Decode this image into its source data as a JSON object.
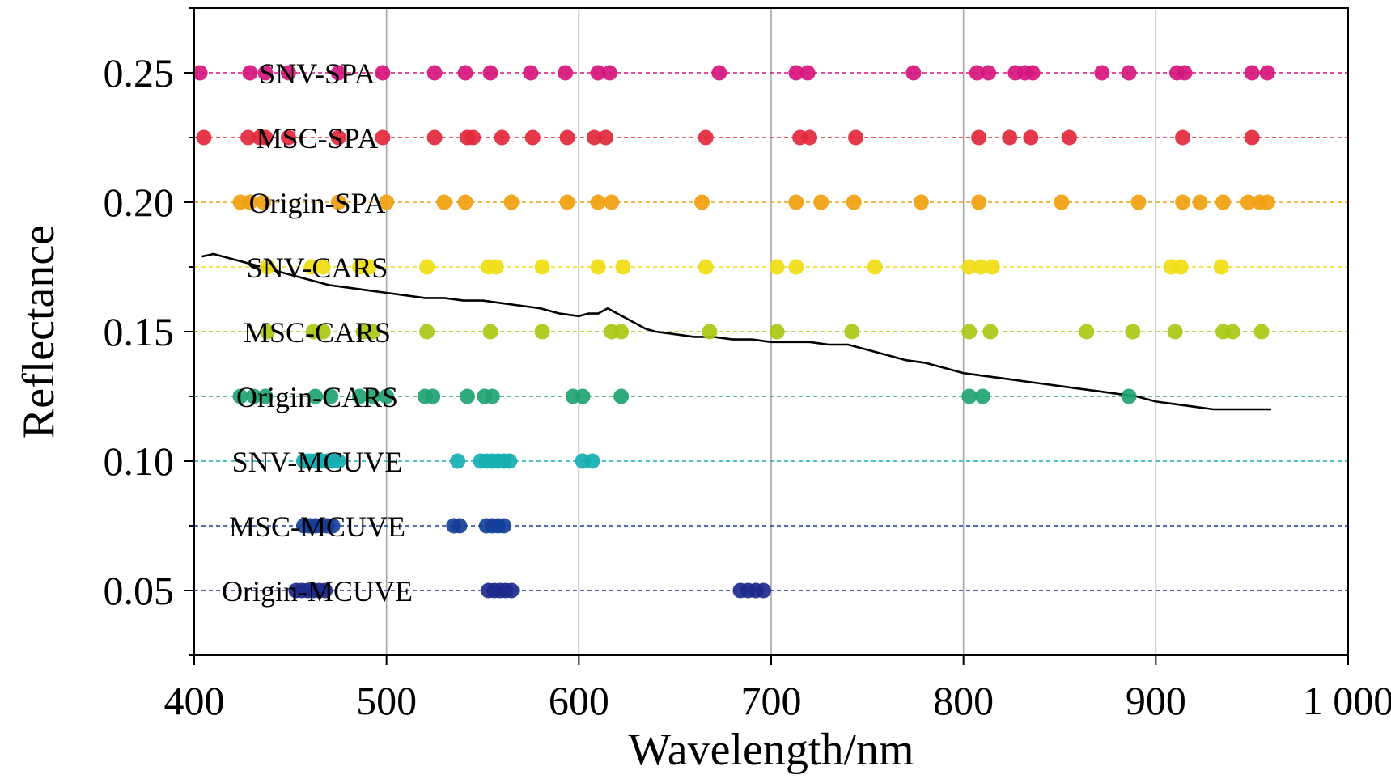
{
  "chart_data": {
    "type": "scatter",
    "title": "",
    "xlabel": "Wavelength/nm",
    "ylabel": "Reflectance",
    "xlim": [
      400,
      1000
    ],
    "ylim": [
      0.025,
      0.275
    ],
    "x_ticks": [
      400,
      500,
      600,
      700,
      800,
      900,
      1000
    ],
    "x_tick_labels": [
      "400",
      "500",
      "600",
      "700",
      "800",
      "900",
      "1 000"
    ],
    "y_ticks": [
      0.05,
      0.1,
      0.15,
      0.2,
      0.25
    ],
    "y_tick_labels": [
      "0.05",
      "0.10",
      "0.15",
      "0.20",
      "0.25"
    ],
    "grid": "vertical",
    "series": [
      {
        "name": "SNV-SPA",
        "y": 0.25,
        "color": "#d6157e",
        "x": [
          403,
          429,
          437,
          449,
          475,
          498,
          525,
          541,
          554,
          575,
          593,
          610,
          616,
          673,
          713,
          719,
          774,
          807,
          813,
          827,
          832,
          836,
          872,
          886,
          911,
          915,
          950,
          958
        ]
      },
      {
        "name": "MSC-SPA",
        "y": 0.225,
        "color": "#e2283c",
        "x": [
          405,
          428,
          434,
          437,
          449,
          475,
          498,
          525,
          542,
          545,
          560,
          576,
          594,
          608,
          614,
          666,
          715,
          720,
          744,
          808,
          824,
          835,
          855,
          914,
          950
        ]
      },
      {
        "name": "Origin-SPA",
        "y": 0.2,
        "color": "#f0a00f",
        "x": [
          424,
          429,
          436,
          475,
          500,
          530,
          541,
          565,
          594,
          610,
          617,
          664,
          713,
          726,
          743,
          778,
          808,
          851,
          891,
          914,
          923,
          935,
          948,
          954,
          958
        ]
      },
      {
        "name": "SNV-CARS",
        "y": 0.175,
        "color": "#f0dc14",
        "x": [
          438,
          461,
          467,
          486,
          491,
          521,
          553,
          557,
          581,
          610,
          623,
          666,
          703,
          713,
          754,
          803,
          809,
          815,
          908,
          913,
          934
        ]
      },
      {
        "name": "MSC-CARS",
        "y": 0.15,
        "color": "#a8c914",
        "x": [
          438,
          462,
          467,
          488,
          493,
          521,
          554,
          581,
          617,
          622,
          668,
          703,
          742,
          803,
          814,
          864,
          888,
          910,
          935,
          940,
          955
        ]
      },
      {
        "name": "Origin-CARS",
        "y": 0.125,
        "color": "#1fa373",
        "x": [
          424,
          431,
          437,
          463,
          471,
          486,
          493,
          500,
          520,
          524,
          542,
          551,
          555,
          597,
          602,
          622,
          803,
          810,
          886
        ]
      },
      {
        "name": "SNV-MCUVE",
        "y": 0.1,
        "color": "#16afb2",
        "x": [
          457,
          460,
          463,
          466,
          469,
          472,
          475,
          537,
          549,
          552,
          555,
          558,
          561,
          564,
          602,
          607
        ]
      },
      {
        "name": "MSC-MCUVE",
        "y": 0.075,
        "color": "#133f99",
        "x": [
          457,
          460,
          463,
          466,
          469,
          472,
          535,
          538,
          552,
          555,
          558,
          561
        ]
      },
      {
        "name": "Origin-MCUVE",
        "y": 0.05,
        "color": "#1d2a8c",
        "x": [
          453,
          456,
          459,
          462,
          465,
          468,
          553,
          556,
          559,
          562,
          565,
          684,
          688,
          692,
          696
        ]
      }
    ],
    "spectrum": {
      "color": "#000000",
      "x": [
        404,
        410,
        420,
        430,
        440,
        450,
        460,
        470,
        480,
        490,
        500,
        510,
        520,
        530,
        540,
        550,
        560,
        570,
        580,
        590,
        600,
        605,
        610,
        615,
        620,
        625,
        630,
        635,
        640,
        650,
        660,
        670,
        680,
        690,
        700,
        710,
        720,
        730,
        740,
        750,
        760,
        770,
        780,
        790,
        800,
        810,
        820,
        830,
        840,
        850,
        860,
        870,
        880,
        890,
        900,
        910,
        920,
        930,
        940,
        950,
        960
      ],
      "y": [
        0.179,
        0.18,
        0.178,
        0.176,
        0.174,
        0.172,
        0.17,
        0.168,
        0.167,
        0.166,
        0.165,
        0.164,
        0.163,
        0.163,
        0.162,
        0.162,
        0.161,
        0.16,
        0.159,
        0.157,
        0.156,
        0.157,
        0.157,
        0.159,
        0.157,
        0.155,
        0.153,
        0.151,
        0.15,
        0.149,
        0.148,
        0.148,
        0.147,
        0.147,
        0.146,
        0.146,
        0.146,
        0.145,
        0.145,
        0.143,
        0.141,
        0.139,
        0.138,
        0.136,
        0.134,
        0.133,
        0.132,
        0.131,
        0.13,
        0.129,
        0.128,
        0.127,
        0.126,
        0.125,
        0.123,
        0.122,
        0.121,
        0.12,
        0.12,
        0.12,
        0.12
      ]
    }
  }
}
